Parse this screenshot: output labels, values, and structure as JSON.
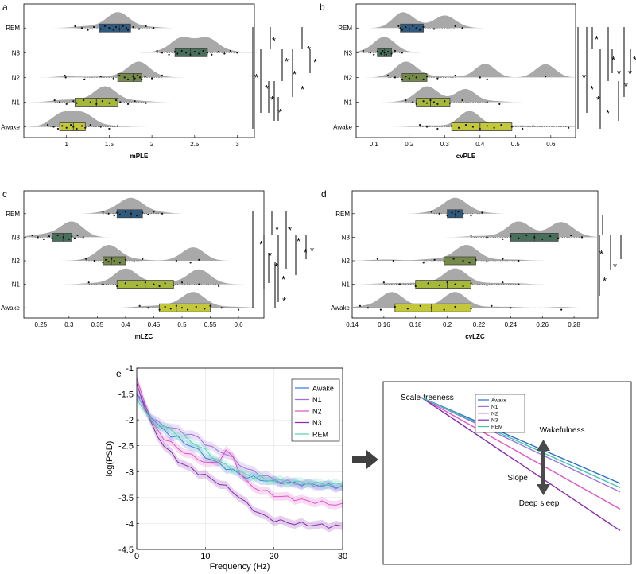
{
  "chart_data": [
    {
      "panel": "a",
      "type": "raincloud",
      "xlabel": "mPLE",
      "xlim": [
        0.5,
        3.2
      ],
      "xticks": [
        1,
        1.5,
        2,
        2.5,
        3
      ],
      "xtick_labels": [
        "1",
        "1.5",
        "2",
        "2.5",
        "3"
      ],
      "categories": [
        "REM",
        "N3",
        "N2",
        "N1",
        "Awake"
      ],
      "box_colors": [
        "#2f5a80",
        "#486e5c",
        "#758a47",
        "#a6b83a",
        "#c2c83a"
      ],
      "stats": [
        {
          "stage": "REM",
          "q1": 1.38,
          "median": 1.62,
          "q3": 1.75,
          "wmin": 1.1,
          "wmax": 2.02,
          "peaks": [
            1.6
          ],
          "points": [
            1.1,
            1.18,
            1.25,
            1.32,
            1.4,
            1.45,
            1.5,
            1.55,
            1.58,
            1.62,
            1.66,
            1.7,
            1.72,
            1.78,
            1.85,
            1.93,
            2.02
          ]
        },
        {
          "stage": "N3",
          "q1": 2.27,
          "median": 2.45,
          "q3": 2.65,
          "wmin": 2.06,
          "wmax": 3.0,
          "peaks": [
            2.35,
            2.65
          ],
          "points": [
            2.06,
            2.12,
            2.2,
            2.27,
            2.3,
            2.35,
            2.4,
            2.45,
            2.5,
            2.55,
            2.6,
            2.65,
            2.7,
            2.78,
            2.85,
            2.92,
            3.0
          ]
        },
        {
          "stage": "N2",
          "q1": 1.6,
          "median": 1.78,
          "q3": 1.88,
          "wmin": 1.21,
          "wmax": 2.12,
          "peaks": [
            1.85
          ],
          "points": [
            0.98,
            0.99,
            1.21,
            1.4,
            1.55,
            1.62,
            1.68,
            1.72,
            1.78,
            1.8,
            1.83,
            1.86,
            1.88,
            1.92,
            2.0,
            2.12
          ]
        },
        {
          "stage": "N1",
          "q1": 1.1,
          "median": 1.35,
          "q3": 1.6,
          "wmin": 0.86,
          "wmax": 1.93,
          "peaks": [
            1.45
          ],
          "points": [
            0.86,
            0.92,
            1.0,
            1.08,
            1.12,
            1.2,
            1.28,
            1.35,
            1.42,
            1.5,
            1.58,
            1.63,
            1.72,
            1.8,
            1.93
          ]
        },
        {
          "stage": "Awake",
          "q1": 0.92,
          "median": 1.08,
          "q3": 1.22,
          "wmin": 0.78,
          "wmax": 1.6,
          "peaks": [
            0.95,
            1.2
          ],
          "points": [
            0.78,
            0.85,
            0.9,
            0.95,
            1.0,
            1.05,
            1.08,
            1.12,
            1.18,
            1.22,
            1.28,
            1.4,
            1.5,
            1.6
          ]
        }
      ],
      "significance": [
        "*",
        "*",
        "*",
        "*",
        "*",
        "*",
        "*",
        "*",
        "*",
        "*"
      ]
    },
    {
      "panel": "b",
      "type": "raincloud",
      "xlabel": "cvPLE",
      "xlim": [
        0.05,
        0.67
      ],
      "xticks": [
        0.1,
        0.2,
        0.3,
        0.4,
        0.5,
        0.6
      ],
      "xtick_labels": [
        "0.1",
        "0.2",
        "0.3",
        "0.4",
        "0.5",
        "0.6"
      ],
      "categories": [
        "REM",
        "N3",
        "N2",
        "N1",
        "Awake"
      ],
      "box_colors": [
        "#2f5a80",
        "#486e5c",
        "#758a47",
        "#a6b83a",
        "#c2c83a"
      ],
      "stats": [
        {
          "stage": "REM",
          "q1": 0.175,
          "median": 0.2,
          "q3": 0.24,
          "wmin": 0.17,
          "wmax": 0.33,
          "peaks": [
            0.18,
            0.3
          ],
          "points": [
            0.17,
            0.175,
            0.18,
            0.19,
            0.2,
            0.21,
            0.22,
            0.23,
            0.24,
            0.27,
            0.33,
            0.35
          ]
        },
        {
          "stage": "N3",
          "q1": 0.11,
          "median": 0.13,
          "q3": 0.15,
          "wmin": 0.07,
          "wmax": 0.18,
          "peaks": [
            0.13
          ],
          "points": [
            0.07,
            0.09,
            0.1,
            0.11,
            0.12,
            0.125,
            0.13,
            0.135,
            0.14,
            0.15,
            0.16,
            0.18
          ]
        },
        {
          "stage": "N2",
          "q1": 0.18,
          "median": 0.2,
          "q3": 0.25,
          "wmin": 0.14,
          "wmax": 0.33,
          "peaks": [
            0.19,
            0.415,
            0.585
          ],
          "points": [
            0.14,
            0.16,
            0.18,
            0.19,
            0.2,
            0.21,
            0.22,
            0.24,
            0.25,
            0.28,
            0.33,
            0.4,
            0.42,
            0.585
          ]
        },
        {
          "stage": "N1",
          "q1": 0.22,
          "median": 0.26,
          "q3": 0.315,
          "wmin": 0.19,
          "wmax": 0.42,
          "peaks": [
            0.25,
            0.36
          ],
          "points": [
            0.19,
            0.21,
            0.22,
            0.24,
            0.25,
            0.26,
            0.27,
            0.28,
            0.3,
            0.315,
            0.35,
            0.42,
            0.455
          ]
        },
        {
          "stage": "Awake",
          "q1": 0.32,
          "median": 0.4,
          "q3": 0.49,
          "wmin": 0.23,
          "wmax": 0.65,
          "peaks": [
            0.37
          ],
          "points": [
            0.23,
            0.25,
            0.28,
            0.32,
            0.34,
            0.36,
            0.38,
            0.4,
            0.42,
            0.44,
            0.46,
            0.49,
            0.52,
            0.55,
            0.65
          ]
        }
      ],
      "significance": [
        "*",
        "*",
        "*",
        "*",
        "*",
        "*",
        "*",
        "*",
        "*",
        "*"
      ]
    },
    {
      "panel": "c",
      "type": "raincloud",
      "xlabel": "mLZC",
      "xlim": [
        0.22,
        0.645
      ],
      "xticks": [
        0.25,
        0.3,
        0.35,
        0.4,
        0.45,
        0.5,
        0.55,
        0.6
      ],
      "xtick_labels": [
        "0.25",
        "0.3",
        "0.35",
        "0.4",
        "0.45",
        "0.5",
        "0.55",
        "0.6"
      ],
      "categories": [
        "REM",
        "N3",
        "N2",
        "N1",
        "Awake"
      ],
      "box_colors": [
        "#2f5a80",
        "#486e5c",
        "#758a47",
        "#a6b83a",
        "#c2c83a"
      ],
      "stats": [
        {
          "stage": "REM",
          "q1": 0.385,
          "median": 0.41,
          "q3": 0.43,
          "wmin": 0.36,
          "wmax": 0.465,
          "peaks": [
            0.41
          ],
          "points": [
            0.36,
            0.37,
            0.38,
            0.385,
            0.39,
            0.4,
            0.41,
            0.42,
            0.43,
            0.44,
            0.45,
            0.465
          ]
        },
        {
          "stage": "N3",
          "q1": 0.27,
          "median": 0.29,
          "q3": 0.305,
          "wmin": 0.235,
          "wmax": 0.325,
          "peaks": [
            0.305
          ],
          "points": [
            0.235,
            0.245,
            0.255,
            0.265,
            0.27,
            0.28,
            0.29,
            0.3,
            0.305,
            0.31,
            0.315,
            0.325
          ]
        },
        {
          "stage": "N2",
          "q1": 0.36,
          "median": 0.375,
          "q3": 0.4,
          "wmin": 0.33,
          "wmax": 0.43,
          "peaks": [
            0.37,
            0.52
          ],
          "points": [
            0.33,
            0.345,
            0.36,
            0.365,
            0.37,
            0.375,
            0.38,
            0.39,
            0.4,
            0.415,
            0.43,
            0.49,
            0.515,
            0.53
          ]
        },
        {
          "stage": "N1",
          "q1": 0.385,
          "median": 0.435,
          "q3": 0.485,
          "wmin": 0.335,
          "wmax": 0.565,
          "peaks": [
            0.4,
            0.53
          ],
          "points": [
            0.335,
            0.36,
            0.385,
            0.4,
            0.42,
            0.435,
            0.45,
            0.46,
            0.47,
            0.485,
            0.5,
            0.53,
            0.565
          ]
        },
        {
          "stage": "Awake",
          "q1": 0.46,
          "median": 0.49,
          "q3": 0.55,
          "wmin": 0.425,
          "wmax": 0.6,
          "peaks": [
            0.52
          ],
          "points": [
            0.425,
            0.44,
            0.46,
            0.47,
            0.48,
            0.49,
            0.5,
            0.51,
            0.525,
            0.54,
            0.55,
            0.57,
            0.6
          ]
        }
      ],
      "significance": [
        "*",
        "*",
        "*",
        "*",
        "*",
        "*",
        "*",
        "*",
        "*",
        "*"
      ]
    },
    {
      "panel": "d",
      "type": "raincloud",
      "xlabel": "cvLZC",
      "xlim": [
        0.14,
        0.295
      ],
      "xticks": [
        0.14,
        0.16,
        0.18,
        0.2,
        0.22,
        0.24,
        0.26,
        0.28
      ],
      "xtick_labels": [
        "0.14",
        "0.16",
        "0.18",
        "0.2",
        "0.22",
        "0.24",
        "0.26",
        "0.28"
      ],
      "categories": [
        "REM",
        "N3",
        "N2",
        "N1",
        "Awake"
      ],
      "box_colors": [
        "#2f5a80",
        "#486e5c",
        "#758a47",
        "#a6b83a",
        "#c2c83a"
      ],
      "stats": [
        {
          "stage": "REM",
          "q1": 0.2,
          "median": 0.205,
          "q3": 0.21,
          "wmin": 0.19,
          "wmax": 0.222,
          "peaks": [
            0.205
          ],
          "points": [
            0.19,
            0.195,
            0.2,
            0.203,
            0.205,
            0.207,
            0.21,
            0.215,
            0.222
          ]
        },
        {
          "stage": "N3",
          "q1": 0.24,
          "median": 0.255,
          "q3": 0.27,
          "wmin": 0.215,
          "wmax": 0.285,
          "peaks": [
            0.245,
            0.272
          ],
          "points": [
            0.215,
            0.225,
            0.235,
            0.24,
            0.245,
            0.25,
            0.255,
            0.26,
            0.265,
            0.27,
            0.278,
            0.285
          ]
        },
        {
          "stage": "N2",
          "q1": 0.198,
          "median": 0.21,
          "q3": 0.218,
          "wmin": 0.185,
          "wmax": 0.245,
          "peaks": [
            0.212
          ],
          "points": [
            0.156,
            0.166,
            0.185,
            0.192,
            0.198,
            0.204,
            0.21,
            0.214,
            0.218,
            0.225,
            0.235,
            0.245
          ]
        },
        {
          "stage": "N1",
          "q1": 0.18,
          "median": 0.2,
          "q3": 0.215,
          "wmin": 0.16,
          "wmax": 0.245,
          "peaks": [
            0.205
          ],
          "points": [
            0.16,
            0.17,
            0.18,
            0.188,
            0.195,
            0.2,
            0.205,
            0.21,
            0.215,
            0.225,
            0.235,
            0.245
          ]
        },
        {
          "stage": "Awake",
          "q1": 0.167,
          "median": 0.19,
          "q3": 0.215,
          "wmin": 0.145,
          "wmax": 0.272,
          "peaks": [
            0.165,
            0.205
          ],
          "points": [
            0.145,
            0.15,
            0.158,
            0.167,
            0.175,
            0.183,
            0.19,
            0.198,
            0.205,
            0.215,
            0.228,
            0.24,
            0.272
          ]
        }
      ],
      "significance": [
        "*",
        "*",
        "*"
      ]
    },
    {
      "panel": "e",
      "type": "line",
      "xlabel": "Frequency (Hz)",
      "ylabel": "log(PSD)",
      "xlim": [
        0,
        30
      ],
      "ylim": [
        -4.5,
        -1
      ],
      "xticks": [
        0,
        10,
        20,
        30
      ],
      "xtick_labels": [
        "0",
        "10",
        "20",
        "30"
      ],
      "yticks": [
        -1,
        -1.5,
        -2,
        -2.5,
        -3,
        -3.5,
        -4,
        -4.5
      ],
      "ytick_labels": [
        "-1",
        "-1.5",
        "-2",
        "-2.5",
        "-3",
        "-3.5",
        "-4",
        "-4.5"
      ],
      "x": [
        0,
        1,
        2,
        3,
        4,
        5,
        6,
        7,
        8,
        9,
        10,
        11,
        12,
        13,
        14,
        15,
        16,
        17,
        18,
        19,
        20,
        21,
        22,
        23,
        24,
        25,
        26,
        27,
        28,
        29,
        30
      ],
      "series": [
        {
          "name": "Awake",
          "color": "#3a7fd8",
          "values": [
            -1.5,
            -1.65,
            -1.9,
            -2.1,
            -2.2,
            -2.3,
            -2.35,
            -2.45,
            -2.5,
            -2.6,
            -2.7,
            -2.78,
            -2.85,
            -2.92,
            -2.98,
            -3.05,
            -3.1,
            -3.12,
            -3.15,
            -3.17,
            -3.2,
            -3.2,
            -3.22,
            -3.22,
            -3.24,
            -3.24,
            -3.25,
            -3.26,
            -3.27,
            -3.28,
            -3.28
          ]
        },
        {
          "name": "N1",
          "color": "#a070e0",
          "values": [
            -1.5,
            -1.75,
            -1.95,
            -2.05,
            -2.1,
            -2.15,
            -2.2,
            -2.25,
            -2.3,
            -2.35,
            -2.45,
            -2.55,
            -2.6,
            -2.65,
            -2.75,
            -2.85,
            -2.95,
            -3.0,
            -3.05,
            -3.1,
            -3.15,
            -3.18,
            -3.2,
            -3.22,
            -3.24,
            -3.25,
            -3.26,
            -3.27,
            -3.28,
            -3.29,
            -3.3
          ]
        },
        {
          "name": "N2",
          "color": "#e055c8",
          "values": [
            -1.2,
            -1.6,
            -2.0,
            -2.2,
            -2.35,
            -2.45,
            -2.55,
            -2.62,
            -2.7,
            -2.75,
            -2.82,
            -2.85,
            -2.78,
            -2.6,
            -2.72,
            -3.0,
            -3.2,
            -3.3,
            -3.35,
            -3.4,
            -3.45,
            -3.48,
            -3.5,
            -3.52,
            -3.55,
            -3.57,
            -3.58,
            -3.6,
            -3.62,
            -3.63,
            -3.65
          ]
        },
        {
          "name": "N3",
          "color": "#8a2cb0",
          "values": [
            -1.3,
            -1.7,
            -2.05,
            -2.3,
            -2.5,
            -2.65,
            -2.78,
            -2.88,
            -2.95,
            -3.02,
            -3.08,
            -3.15,
            -3.22,
            -3.3,
            -3.38,
            -3.5,
            -3.62,
            -3.72,
            -3.82,
            -3.88,
            -3.93,
            -3.96,
            -3.98,
            -4.0,
            -4.01,
            -4.02,
            -4.03,
            -4.04,
            -4.05,
            -4.05,
            -4.06
          ]
        },
        {
          "name": "REM",
          "color": "#5ad2b4",
          "values": [
            -1.6,
            -1.8,
            -2.0,
            -2.1,
            -2.15,
            -2.2,
            -2.28,
            -2.35,
            -2.42,
            -2.5,
            -2.6,
            -2.7,
            -2.8,
            -2.88,
            -2.95,
            -3.0,
            -3.05,
            -3.1,
            -3.12,
            -3.15,
            -3.17,
            -3.18,
            -3.2,
            -3.2,
            -3.21,
            -3.22,
            -3.23,
            -3.23,
            -3.24,
            -3.25,
            -3.25
          ]
        }
      ],
      "legend": [
        "Awake",
        "N1",
        "N2",
        "N3",
        "REM"
      ],
      "legend_position": "top-right"
    },
    {
      "panel": "e-schematic",
      "type": "line",
      "title": "Scale-freeness",
      "annotations": [
        "Wakefulness",
        "Slope",
        "Deep sleep"
      ],
      "legend": [
        "Awake",
        "N1",
        "N2",
        "N3",
        "REM"
      ],
      "series": [
        {
          "name": "Awake",
          "color": "#2b6fc4",
          "slope": -1.0
        },
        {
          "name": "N1",
          "color": "#a070e0",
          "slope": -1.1
        },
        {
          "name": "N2",
          "color": "#e055c8",
          "slope": -1.3
        },
        {
          "name": "N3",
          "color": "#8a2cb0",
          "slope": -1.55
        },
        {
          "name": "REM",
          "color": "#3fc8b0",
          "slope": -1.05
        }
      ]
    }
  ]
}
